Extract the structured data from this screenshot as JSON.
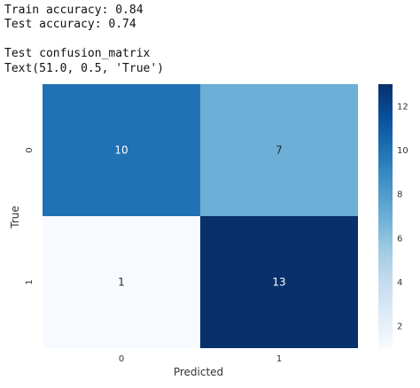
{
  "output": {
    "train_accuracy": "Train accuracy: 0.84",
    "test_accuracy": "Test accuracy: 0.74",
    "cm_title": "Test confusion_matrix",
    "text_repr": "Text(51.0, 0.5, 'True')"
  },
  "chart_data": {
    "type": "heatmap",
    "title": "",
    "xlabel": "Predicted",
    "ylabel": "True",
    "x_categories": [
      "0",
      "1"
    ],
    "y_categories": [
      "0",
      "1"
    ],
    "values": [
      [
        10,
        7
      ],
      [
        1,
        13
      ]
    ],
    "colormap": "Blues",
    "annot_dark_color": "#262626",
    "annot_light_color": "#ffffff",
    "colorbar": {
      "min": 1,
      "max": 13,
      "ticks": [
        2,
        4,
        6,
        8,
        10,
        12
      ],
      "colors_low_to_high": [
        "#f7fbff",
        "#deebf7",
        "#c6dbef",
        "#9ecae1",
        "#6baed6",
        "#4292c6",
        "#2171b5",
        "#08519c",
        "#08306b"
      ]
    }
  }
}
